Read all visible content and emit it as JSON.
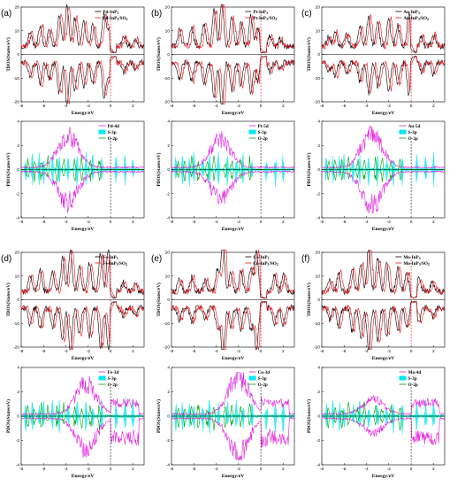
{
  "figure": {
    "panels": [
      {
        "letter": "(a)",
        "metal": "Pd",
        "tdos_legend": [
          "Pd-InP3",
          "Pd-InP3/SO2"
        ],
        "pdos_legend": [
          "Pd-4d",
          "S-3p",
          "O-2p"
        ]
      },
      {
        "letter": "(b)",
        "metal": "Pt",
        "tdos_legend": [
          "Pt-InP3",
          "Pt-InP3/SO2"
        ],
        "pdos_legend": [
          "Pt-5d",
          "S-3p",
          "O-2p"
        ]
      },
      {
        "letter": "(c)",
        "metal": "Au",
        "tdos_legend": [
          "Au-InP3",
          "Au-InP3/SO2"
        ],
        "pdos_legend": [
          "Au-5d",
          "S-3p",
          "O-2p"
        ]
      },
      {
        "letter": "(d)",
        "metal": "Fe",
        "tdos_legend": [
          "Fe-InP3",
          "Fe-InP3/SO2"
        ],
        "pdos_legend": [
          "Fe-3d",
          "S-3p",
          "O-2p"
        ]
      },
      {
        "letter": "(e)",
        "metal": "Co",
        "tdos_legend": [
          "Co-InP3",
          "Co-InP3/SO2"
        ],
        "pdos_legend": [
          "Co-3d",
          "S-3p",
          "O-2p"
        ]
      },
      {
        "letter": "(f)",
        "metal": "Mo",
        "tdos_legend": [
          "Mo-InP3",
          "Mo-InP3/SO2"
        ],
        "pdos_legend": [
          "Mo-4d",
          "S-3p",
          "O-2p"
        ]
      }
    ]
  },
  "chart_data": [
    {
      "type": "line",
      "subplot": "TDOS",
      "xlabel": "Energy/eV",
      "ylabel": "TDOS(States/eV)",
      "xlim": [
        -8,
        3
      ],
      "ylim": [
        -20,
        20
      ],
      "xticks": [
        -8,
        -6,
        -4,
        -2,
        0,
        2
      ],
      "yticks": [
        -20,
        -10,
        0,
        10,
        20
      ],
      "fermi_level": 0,
      "colors": {
        "pristine": "#000000",
        "adsorbed": "#e8141c"
      }
    },
    {
      "type": "area",
      "subplot": "PDOS",
      "xlabel": "Energy/eV",
      "ylabel": "PDOS(States/eV)",
      "xlim": [
        -8,
        3
      ],
      "ylim": [
        -4,
        4
      ],
      "xticks": [
        -8,
        -6,
        -4,
        -2,
        0,
        2
      ],
      "yticks": [
        -4,
        -2,
        0,
        2,
        4
      ],
      "fermi_level": 0,
      "colors": {
        "metal_d": "#e020e0",
        "S-3p": "#00e8f0",
        "O-2p": "#00a000"
      }
    }
  ]
}
